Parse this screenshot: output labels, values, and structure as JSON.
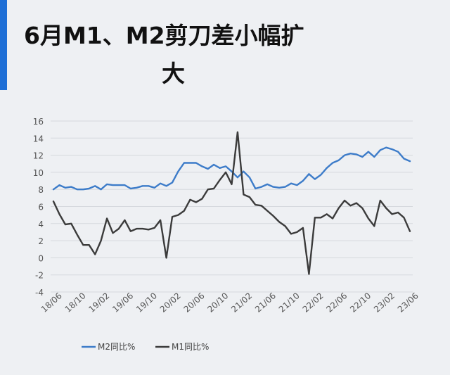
{
  "title": {
    "line1": "6月M1、M2剪刀差小幅扩",
    "line2": "大"
  },
  "colors": {
    "accent": "#1f6fd6",
    "m2": "#3d7cc9",
    "m1": "#3b3b3b",
    "grid": "#d6d9de",
    "axis_text": "#555555"
  },
  "chart_data": {
    "type": "line",
    "title": "6月M1、M2剪刀差小幅扩大",
    "xlabel": "",
    "ylabel": "",
    "ylim": [
      -4,
      16
    ],
    "yticks": [
      -4,
      -2,
      0,
      2,
      4,
      6,
      8,
      10,
      12,
      14,
      16
    ],
    "grid": true,
    "legend_position": "bottom-left",
    "x": [
      "18/06",
      "18/07",
      "18/08",
      "18/09",
      "18/10",
      "18/11",
      "18/12",
      "19/01",
      "19/02",
      "19/03",
      "19/04",
      "19/05",
      "19/06",
      "19/07",
      "19/08",
      "19/09",
      "19/10",
      "19/11",
      "19/12",
      "20/01",
      "20/02",
      "20/03",
      "20/04",
      "20/05",
      "20/06",
      "20/07",
      "20/08",
      "20/09",
      "20/10",
      "20/11",
      "20/12",
      "21/01",
      "21/02",
      "21/03",
      "21/04",
      "21/05",
      "21/06",
      "21/07",
      "21/08",
      "21/09",
      "21/10",
      "21/11",
      "21/12",
      "22/01",
      "22/02",
      "22/03",
      "22/04",
      "22/05",
      "22/06",
      "22/07",
      "22/08",
      "22/09",
      "22/10",
      "22/11",
      "22/12",
      "23/01",
      "23/02",
      "23/03",
      "23/04",
      "23/05",
      "23/06"
    ],
    "xtick_labels": [
      "18/06",
      "18/10",
      "19/02",
      "19/06",
      "19/10",
      "20/02",
      "20/06",
      "20/10",
      "21/02",
      "21/06",
      "21/10",
      "22/02",
      "22/06",
      "22/10",
      "23/02",
      "23/06"
    ],
    "series": [
      {
        "name": "M2同比%",
        "values": [
          8.0,
          8.5,
          8.2,
          8.3,
          8.0,
          8.0,
          8.1,
          8.4,
          8.0,
          8.6,
          8.5,
          8.5,
          8.5,
          8.1,
          8.2,
          8.4,
          8.4,
          8.2,
          8.7,
          8.4,
          8.8,
          10.1,
          11.1,
          11.1,
          11.1,
          10.7,
          10.4,
          10.9,
          10.5,
          10.7,
          10.1,
          9.4,
          10.1,
          9.4,
          8.1,
          8.3,
          8.6,
          8.3,
          8.2,
          8.3,
          8.7,
          8.5,
          9.0,
          9.8,
          9.2,
          9.7,
          10.5,
          11.1,
          11.4,
          12.0,
          12.2,
          12.1,
          11.8,
          12.4,
          11.8,
          12.6,
          12.9,
          12.7,
          12.4,
          11.6,
          11.3
        ]
      },
      {
        "name": "M1同比%",
        "values": [
          6.6,
          5.1,
          3.9,
          4.0,
          2.7,
          1.5,
          1.5,
          0.4,
          2.0,
          4.6,
          2.9,
          3.4,
          4.4,
          3.1,
          3.4,
          3.4,
          3.3,
          3.5,
          4.4,
          0.0,
          4.8,
          5.0,
          5.5,
          6.8,
          6.5,
          6.9,
          8.0,
          8.1,
          9.1,
          10.0,
          8.6,
          14.7,
          7.4,
          7.1,
          6.2,
          6.1,
          5.5,
          4.9,
          4.2,
          3.7,
          2.8,
          3.0,
          3.5,
          -1.9,
          4.7,
          4.7,
          5.1,
          4.6,
          5.8,
          6.7,
          6.1,
          6.4,
          5.8,
          4.6,
          3.7,
          6.7,
          5.8,
          5.1,
          5.3,
          4.7,
          3.1
        ]
      }
    ]
  }
}
